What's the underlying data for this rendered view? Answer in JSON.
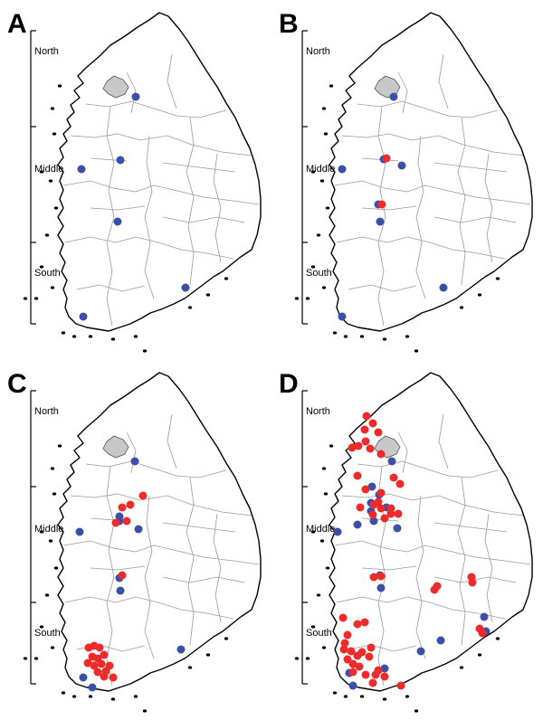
{
  "colors": {
    "blue": "#3c4fa8",
    "red": "#ee2b2b"
  },
  "panels": [
    {
      "letter": "A",
      "labels": [
        "North",
        "Middle",
        "South"
      ],
      "blue": [
        [
          150,
          107
        ],
        [
          133,
          177
        ],
        [
          90,
          187
        ],
        [
          130,
          245
        ],
        [
          205,
          318
        ],
        [
          92,
          350
        ]
      ],
      "red": []
    },
    {
      "letter": "B",
      "labels": [
        "North",
        "Middle",
        "South"
      ],
      "blue": [
        [
          135,
          107
        ],
        [
          124,
          176
        ],
        [
          144,
          183
        ],
        [
          78,
          187
        ],
        [
          118,
          226
        ],
        [
          120,
          245
        ],
        [
          190,
          318
        ],
        [
          78,
          350
        ]
      ],
      "red": [
        [
          127,
          175
        ],
        [
          122,
          226
        ]
      ]
    },
    {
      "letter": "C",
      "labels": [
        "North",
        "Middle",
        "South"
      ],
      "blue": [
        [
          149,
          112
        ],
        [
          132,
          173
        ],
        [
          132,
          178
        ],
        [
          153,
          187
        ],
        [
          88,
          190
        ],
        [
          132,
          241
        ],
        [
          133,
          255
        ],
        [
          200,
          320
        ],
        [
          92,
          351
        ],
        [
          102,
          362
        ]
      ],
      "red": [
        [
          158,
          150
        ],
        [
          144,
          160
        ],
        [
          135,
          163
        ],
        [
          140,
          178
        ],
        [
          128,
          180
        ],
        [
          135,
          238
        ],
        [
          98,
          318
        ],
        [
          104,
          316
        ],
        [
          110,
          318
        ],
        [
          115,
          326
        ],
        [
          102,
          328
        ],
        [
          108,
          330
        ],
        [
          97,
          335
        ],
        [
          104,
          338
        ],
        [
          112,
          336
        ],
        [
          121,
          338
        ],
        [
          117,
          344
        ],
        [
          125,
          351
        ],
        [
          108,
          345
        ],
        [
          115,
          350
        ]
      ]
    },
    {
      "letter": "D",
      "labels": [
        "North",
        "Middle",
        "South"
      ],
      "blue": [
        [
          133,
          112
        ],
        [
          111,
          140
        ],
        [
          110,
          158
        ],
        [
          119,
          149
        ],
        [
          110,
          167
        ],
        [
          127,
          163
        ],
        [
          95,
          182
        ],
        [
          113,
          178
        ],
        [
          139,
          186
        ],
        [
          73,
          190
        ],
        [
          120,
          238
        ],
        [
          121,
          252
        ],
        [
          235,
          284
        ],
        [
          237,
          300
        ],
        [
          187,
          310
        ],
        [
          165,
          322
        ],
        [
          125,
          341
        ],
        [
          86,
          346
        ],
        [
          90,
          360
        ]
      ],
      "red": [
        [
          105,
          62
        ],
        [
          112,
          70
        ],
        [
          103,
          77
        ],
        [
          118,
          80
        ],
        [
          104,
          90
        ],
        [
          96,
          95
        ],
        [
          89,
          97
        ],
        [
          109,
          98
        ],
        [
          121,
          104
        ],
        [
          95,
          128
        ],
        [
          135,
          130
        ],
        [
          142,
          137
        ],
        [
          104,
          143
        ],
        [
          121,
          147
        ],
        [
          118,
          157
        ],
        [
          113,
          160
        ],
        [
          98,
          163
        ],
        [
          112,
          171
        ],
        [
          132,
          170
        ],
        [
          125,
          175
        ],
        [
          121,
          164
        ],
        [
          132,
          164
        ],
        [
          140,
          170
        ],
        [
          121,
          239
        ],
        [
          113,
          240
        ],
        [
          183,
          250
        ],
        [
          221,
          240
        ],
        [
          222,
          246
        ],
        [
          180,
          254
        ],
        [
          79,
          285
        ],
        [
          95,
          292
        ],
        [
          103,
          290
        ],
        [
          84,
          304
        ],
        [
          81,
          313
        ],
        [
          80,
          320
        ],
        [
          88,
          322
        ],
        [
          95,
          327
        ],
        [
          84,
          331
        ],
        [
          90,
          336
        ],
        [
          97,
          339
        ],
        [
          90,
          345
        ],
        [
          104,
          348
        ],
        [
          115,
          348
        ],
        [
          125,
          350
        ],
        [
          118,
          343
        ],
        [
          100,
          323
        ],
        [
          108,
          328
        ],
        [
          110,
          318
        ],
        [
          143,
          360
        ],
        [
          112,
          357
        ],
        [
          233,
          302
        ],
        [
          230,
          297
        ]
      ]
    }
  ]
}
